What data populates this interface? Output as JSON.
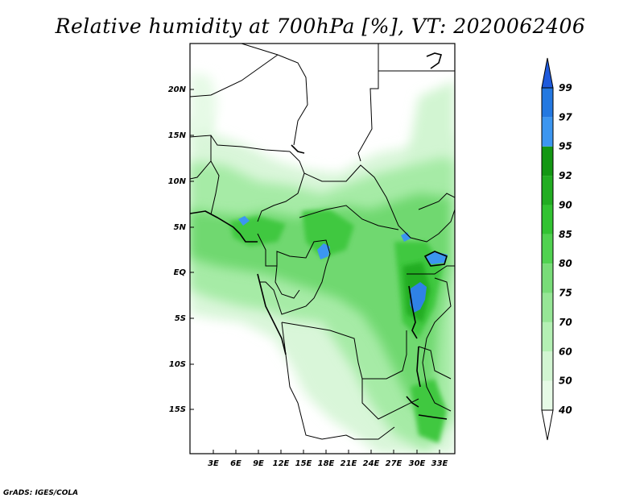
{
  "title": "Relative humidity at 700hPa [%], VT: 2020062406",
  "credit": "GrADS: IGES/COLA",
  "y_ticks": [
    "20N",
    "15N",
    "10N",
    "5N",
    "EQ",
    "5S",
    "10S",
    "15S"
  ],
  "x_ticks": [
    "3E",
    "6E",
    "9E",
    "12E",
    "15E",
    "18E",
    "21E",
    "24E",
    "27E",
    "30E",
    "33E"
  ],
  "colorbar": {
    "labels": [
      "40",
      "50",
      "60",
      "70",
      "75",
      "80",
      "85",
      "90",
      "92",
      "95",
      "97",
      "99"
    ],
    "colors": [
      "#ffffff",
      "#e6fae6",
      "#d2f5d2",
      "#b4f0b4",
      "#96e696",
      "#78dc78",
      "#50d250",
      "#32c332",
      "#22ad22",
      "#139713",
      "#3c96f0",
      "#2378e1",
      "#1e5adc"
    ]
  }
}
